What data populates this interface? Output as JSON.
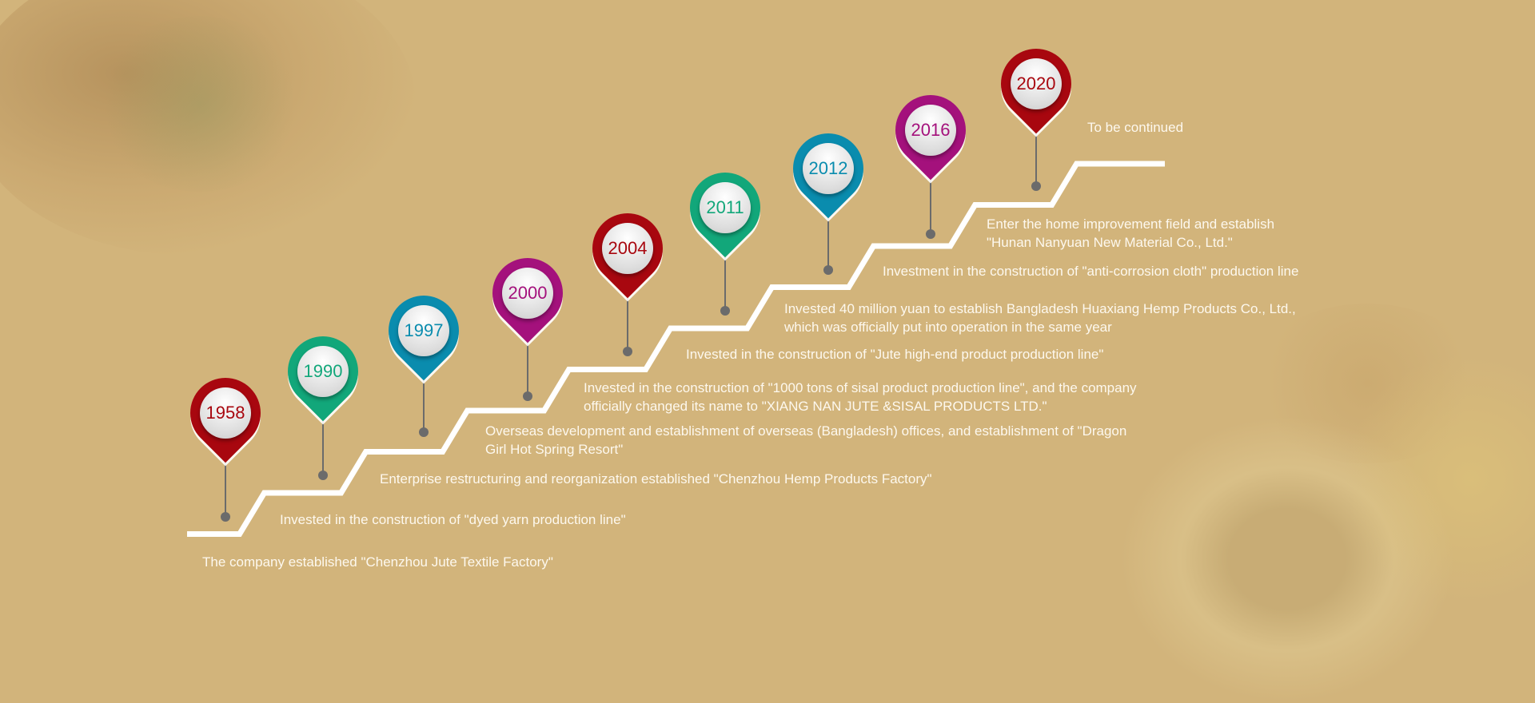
{
  "colors": {
    "background": "#d2b47b",
    "stair_line": "#ffffff",
    "red": "#a8070f",
    "green": "#12a77a",
    "blue": "#0a8cae",
    "magenta": "#a4117c"
  },
  "milestones": [
    {
      "year": "1958",
      "color": "#a8070f",
      "lines": [
        "The company established \"Chenzhou Jute Textile Factory\""
      ]
    },
    {
      "year": "1990",
      "color": "#12a77a",
      "lines": [
        "Invested in the construction of \"dyed yarn production line\""
      ]
    },
    {
      "year": "1997",
      "color": "#0a8cae",
      "lines": [
        "Enterprise restructuring and reorganization established \"Chenzhou Hemp Products Factory\""
      ]
    },
    {
      "year": "2000",
      "color": "#a4117c",
      "lines": [
        "Overseas development and establishment of overseas (Bangladesh) offices, and establishment of \"Dragon",
        "Girl Hot Spring Resort\""
      ]
    },
    {
      "year": "2004",
      "color": "#a8070f",
      "lines": [
        "Invested in the construction of \"1000 tons of sisal product production line\", and the company",
        "officially changed its name to \"XIANG NAN JUTE &SISAL PRODUCTS  LTD.\""
      ]
    },
    {
      "year": "2011",
      "color": "#12a77a",
      "lines": [
        "Invested in the construction of \"Jute high-end product production line\""
      ]
    },
    {
      "year": "2012",
      "color": "#0a8cae",
      "lines": [
        "Invested 40 million yuan to establish Bangladesh Huaxiang Hemp Products Co., Ltd.,",
        "which was officially put into operation in the same year"
      ]
    },
    {
      "year": "2016",
      "color": "#a4117c",
      "lines": [
        "Investment in the construction of \"anti-corrosion cloth\" production line"
      ]
    },
    {
      "year": "2020",
      "color": "#a8070f",
      "lines": [
        "Enter the home improvement field and establish",
        "\"Hunan Nanyuan New Material Co., Ltd.\""
      ]
    }
  ],
  "closing_text": "To be continued"
}
